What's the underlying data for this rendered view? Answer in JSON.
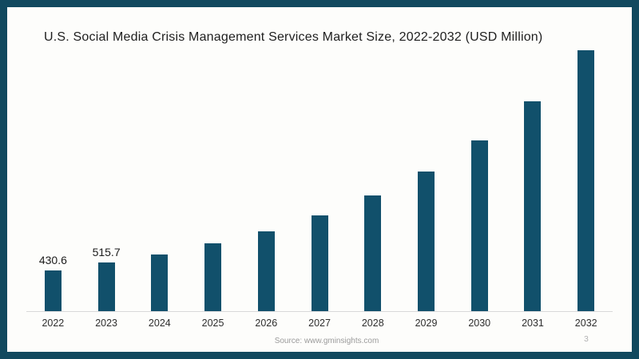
{
  "page": {
    "background": "#fdfdfb",
    "border_color": "#11495f",
    "source_text": "Source: www.gminsights.com",
    "page_number": "3"
  },
  "chart_data": {
    "type": "bar",
    "title": "U.S. Social Media Crisis Management Services Market Size, 2022-2032 (USD Million)",
    "categories": [
      "2022",
      "2023",
      "2024",
      "2025",
      "2026",
      "2027",
      "2028",
      "2029",
      "2030",
      "2031",
      "2032"
    ],
    "values": [
      430.6,
      515.7,
      605,
      720,
      850,
      1020,
      1230,
      1490,
      1820,
      2240,
      2780
    ],
    "data_labels": [
      "430.6",
      "515.7",
      "",
      "",
      "",
      "",
      "",
      "",
      "",
      "",
      ""
    ],
    "xlabel": "",
    "ylabel": "",
    "ylim": [
      0,
      2780
    ],
    "grid": false,
    "legend": false,
    "bar_color": "#11506b",
    "axis_line_color": "#d9d9d9"
  }
}
